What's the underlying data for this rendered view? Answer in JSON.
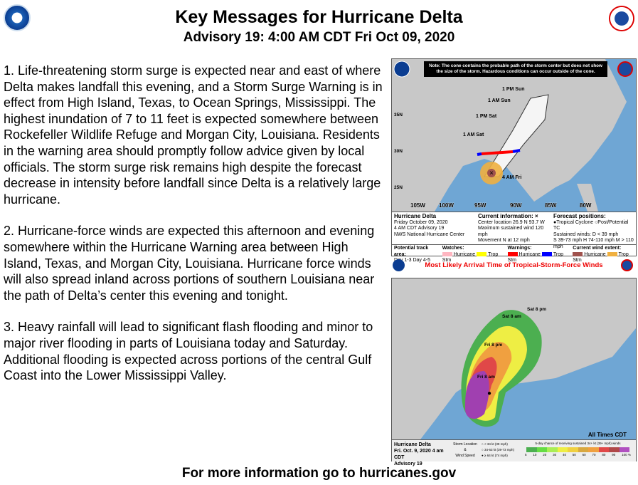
{
  "header": {
    "title": "Key Messages for Hurricane Delta",
    "subtitle": "Advisory 19:  4:00 AM CDT Fri Oct 09, 2020"
  },
  "messages": [
    "1. Life-threatening storm surge is expected near and east of where Delta makes landfall this evening, and a Storm Surge Warning is in effect from High Island, Texas, to Ocean Springs, Mississippi. The highest inundation of 7 to 11 feet is expected somewhere between Rockefeller Wildlife Refuge and Morgan City, Louisiana. Residents in the warning area should promptly follow advice given by local officials. The storm surge risk remains high despite the forecast decrease in intensity before landfall since Delta is a relatively large hurricane.",
    "2. Hurricane-force winds are expected this afternoon and evening somewhere within the Hurricane Warning area between High Island, Texas, and Morgan City, Louisiana. Hurricane force winds will also spread inland across portions of southern Louisiana near the path of Delta’s center this evening and tonight.",
    "3. Heavy rainfall will lead to significant flash flooding and minor to major river flooding in parts of Louisiana today and Saturday. Additional flooding is expected across portions of the central Gulf Coast into the Lower Mississippi Valley."
  ],
  "footer": "For more information go to hurricanes.gov",
  "cone_map": {
    "note": "Note: The cone contains the probable path of the storm center but does not show the size of the storm. Hazardous conditions can occur outside of the cone.",
    "track_labels": [
      "1 PM Sun",
      "1 AM Sun",
      "1 PM Sat",
      "1 AM Sat",
      "4 AM Fri"
    ],
    "lat_labels": [
      "35N",
      "30N",
      "25N"
    ],
    "lon_labels": [
      "105W",
      "100W",
      "95W",
      "90W",
      "85W",
      "80W"
    ],
    "storm_name": "Hurricane Delta",
    "date": "Friday October 09, 2020",
    "advisory": "4 AM CDT Advisory 19",
    "center": "NWS National Hurricane Center",
    "current_title": "Current information: ×",
    "location": "Center location 26.9 N 93.7 W",
    "max_wind": "Maximum sustained wind 120 mph",
    "movement": "Movement N at 12 mph",
    "forecast_title": "Forecast positions:",
    "fp_tc": "Tropical Cyclone",
    "fp_post": "Post/Potential TC",
    "sustained": "Sustained winds:",
    "d": "D < 39 mph",
    "s_h_m": "S 39-73 mph  H 74-110 mph  M > 110 mph",
    "track_area": "Potential track area:",
    "day13": "Day 1-3",
    "day45": "Day 4-5",
    "watches": "Watches:",
    "warnings": "Warnings:",
    "wind_extent": "Current wind extent:",
    "hurricane": "Hurricane",
    "trop_stm": "Trop Stm",
    "colors": {
      "hurricane_watch": "#ffb6c1",
      "ts_watch": "#ffff00",
      "hurricane_warning": "#ff0000",
      "ts_warning": "#0000ff",
      "hurricane_extent": "#a0524d",
      "ts_extent": "#f0b040"
    }
  },
  "arrival_map": {
    "title": "Most Likely Arrival Time of Tropical-Storm-Force Winds",
    "times_label": "All Times CDT",
    "storm_name": "Hurricane Delta",
    "date": "Fri. Oct. 9, 2020  4 am CDT",
    "advisory": "Advisory 19",
    "storm_location": "Storm Location",
    "amp": "&",
    "wind_speed": "Wind Speed",
    "k1": "< 34 kt (39 mph)",
    "k2": "34-63 kt (39-73 mph)",
    "k3": "≥ 64 kt (74 mph)",
    "prob_title": "5-day chance of receiving sustained 34+ kt (39+ mph) winds",
    "prob_ticks": [
      "5",
      "10",
      "20",
      "30",
      "40",
      "50",
      "60",
      "70",
      "80",
      "90",
      "100 %"
    ],
    "prob_colors": [
      "#4caf50",
      "#66dd44",
      "#aaee55",
      "#eeee44",
      "#f0d040",
      "#d8a840",
      "#f0a040",
      "#e04848",
      "#b04848",
      "#b050c0"
    ],
    "arrival_labels": [
      "Fri 8 am",
      "Fri 8 pm",
      "Sat 8 am",
      "Sat 8 pm"
    ]
  }
}
